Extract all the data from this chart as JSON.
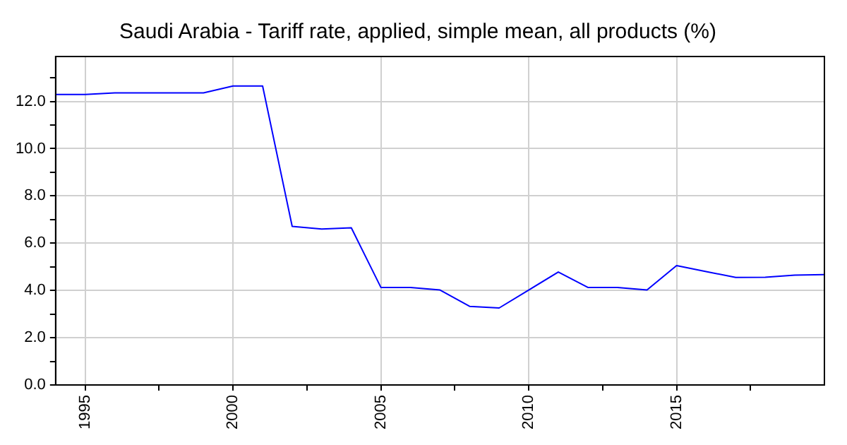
{
  "chart_data": {
    "type": "line",
    "title": "Saudi Arabia - Tariff rate, applied, simple mean, all products (%)",
    "x": [
      1994,
      1995,
      1996,
      1997,
      1998,
      1999,
      2000,
      2001,
      2002,
      2003,
      2004,
      2005,
      2006,
      2007,
      2008,
      2009,
      2010,
      2011,
      2012,
      2013,
      2014,
      2015,
      2016,
      2017,
      2018,
      2019,
      2020
    ],
    "series": [
      {
        "color": "#0000ff",
        "values": [
          12.29,
          12.29,
          12.36,
          12.36,
          12.36,
          12.36,
          12.65,
          12.65,
          6.71,
          6.6,
          6.65,
          4.13,
          4.13,
          4.02,
          3.33,
          3.26,
          4.02,
          4.78,
          4.13,
          4.13,
          4.02,
          5.05,
          4.8,
          4.55,
          4.56,
          4.65,
          4.67
        ]
      }
    ],
    "xlim": [
      1994,
      2020
    ],
    "xticks": [
      1995,
      {
        "value": 1997.5,
        "label": null
      },
      2000,
      {
        "value": 2002.5,
        "label": null
      },
      2005,
      {
        "value": 2007.5,
        "label": null
      },
      2010,
      {
        "value": 2012.5,
        "label": null
      },
      2015,
      {
        "value": 2017.5,
        "label": null
      }
    ],
    "ylim": [
      0,
      13.9
    ],
    "yticks": [
      {
        "value": 0,
        "label": "0.0"
      },
      {
        "value": 1,
        "label": null
      },
      {
        "value": 2,
        "label": "2.0"
      },
      {
        "value": 3,
        "label": null
      },
      {
        "value": 4,
        "label": "4.0"
      },
      {
        "value": 5,
        "label": null
      },
      {
        "value": 6,
        "label": "6.0"
      },
      {
        "value": 7,
        "label": null
      },
      {
        "value": 8,
        "label": "8.0"
      },
      {
        "value": 9,
        "label": null
      },
      {
        "value": 10,
        "label": "10.0"
      },
      {
        "value": 11,
        "label": null
      },
      {
        "value": 12,
        "label": "12.0"
      },
      {
        "value": 13,
        "label": null
      }
    ],
    "grid": true,
    "marker": "none",
    "line_style": "solid"
  }
}
